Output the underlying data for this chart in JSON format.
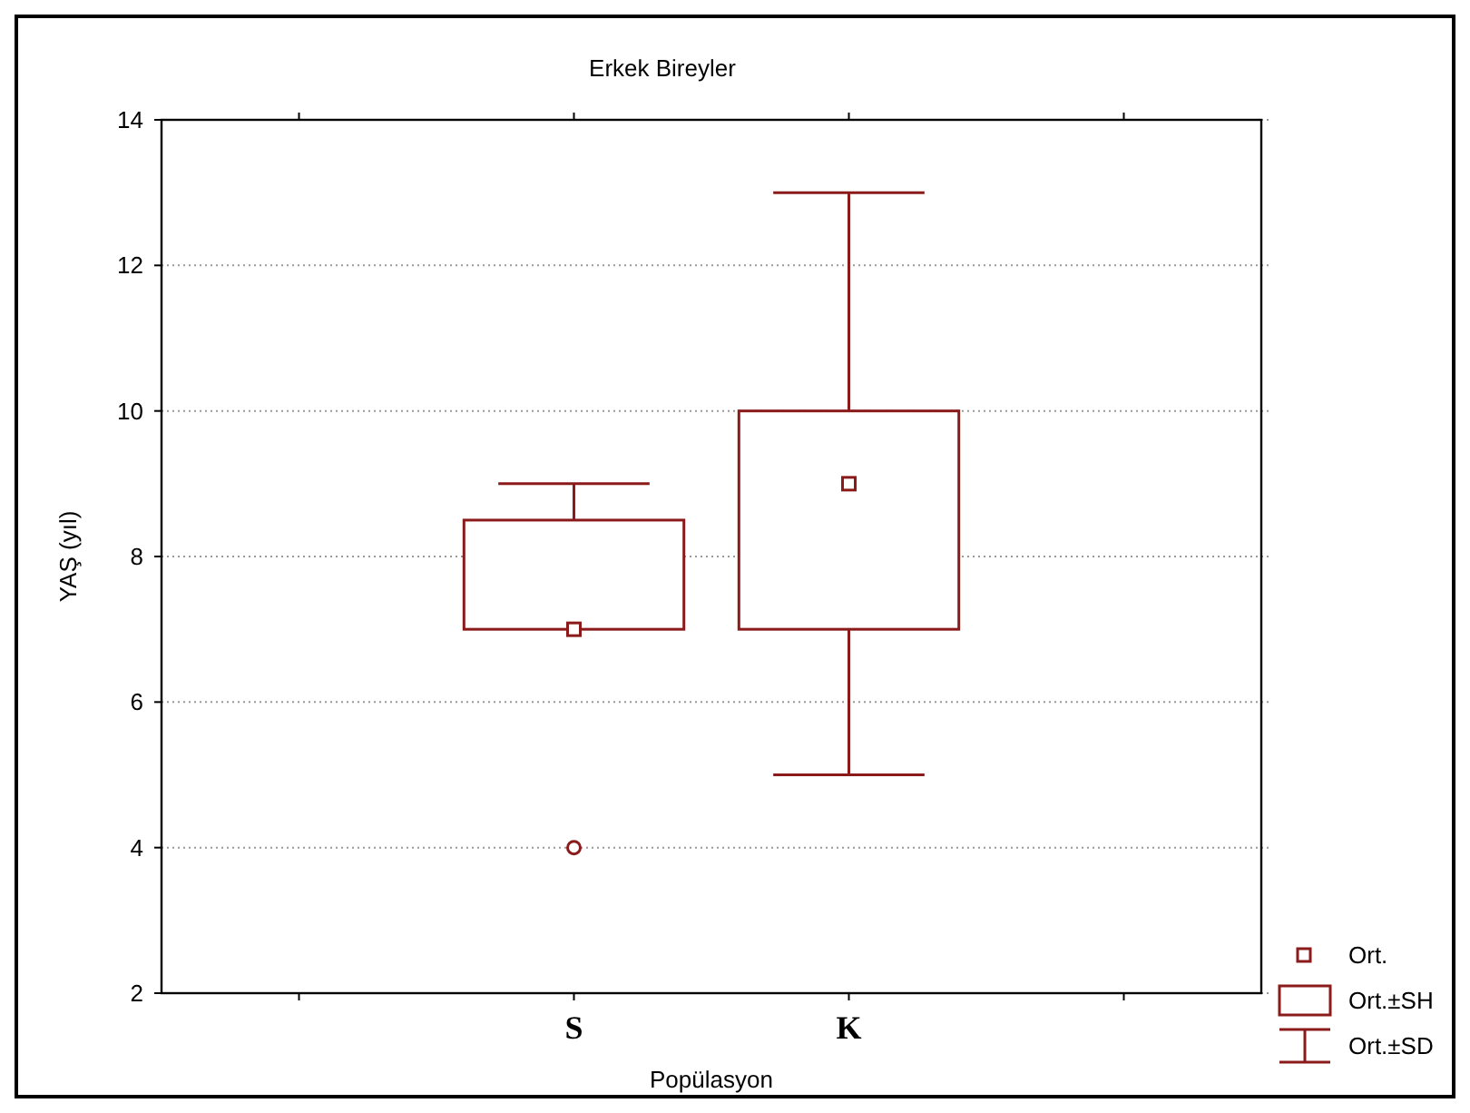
{
  "chart_data": {
    "type": "box",
    "title": "Erkek Bireyler",
    "xlabel": "Popülasyon",
    "ylabel": "YAŞ (yıl)",
    "categories": [
      "S",
      "K"
    ],
    "boxes": [
      {
        "low": 7,
        "q1": 7,
        "q3": 8.5,
        "high": 9,
        "mean": 7,
        "outliers": [
          4
        ]
      },
      {
        "low": 5,
        "q1": 7,
        "q3": 10,
        "high": 13,
        "mean": 9
      }
    ],
    "color": "#8b1a1a",
    "ylim": [
      2,
      14
    ],
    "yticks": [
      2,
      4,
      6,
      8,
      10,
      12,
      14
    ],
    "grid": "y",
    "annotations": [
      "Ort.",
      "Ort.±SH",
      "Ort.±SD"
    ]
  }
}
